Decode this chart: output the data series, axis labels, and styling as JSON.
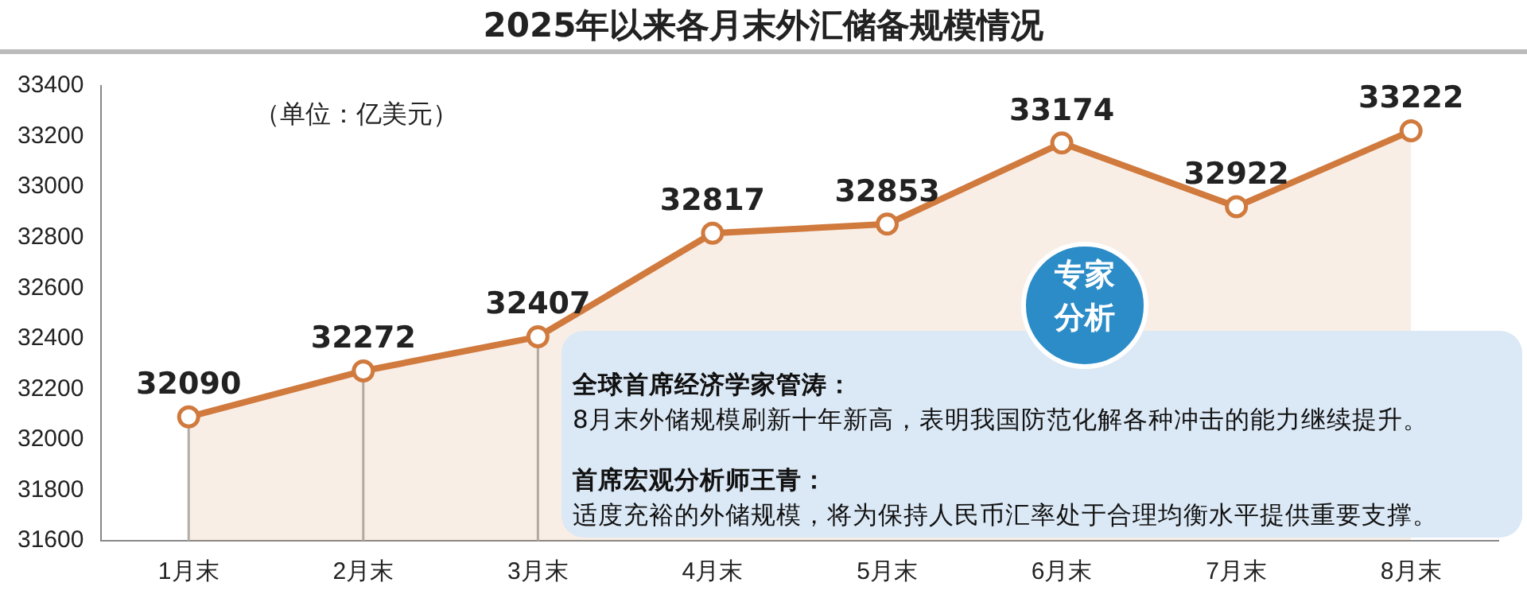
{
  "chart_data": {
    "type": "area",
    "title": "2025年以来各月末外汇储备规模情况",
    "categories": [
      "1月末",
      "2月末",
      "3月末",
      "4月末",
      "5月末",
      "6月末",
      "7月末",
      "8月末"
    ],
    "values": [
      32090,
      32272,
      32407,
      32817,
      32853,
      33174,
      32922,
      33222
    ],
    "color": "#d07a3e",
    "ylim": [
      31600,
      33400
    ],
    "yticks": [
      31600,
      31800,
      32000,
      32200,
      32400,
      32600,
      32800,
      33000,
      33200,
      33400
    ],
    "legend": false,
    "marker": "circle",
    "data_labels": true,
    "annotations": [
      "（单位：亿美元）",
      "专家分析",
      "全球首席经济学家管涛：",
      "8月末外储规模刷新十年新高，表明我国防范化解各种冲击的能力继续提升。",
      "首席宏观分析师王青：",
      "适度充裕的外储规模，将为保持人民币汇率处于合理均衡水平提供重要支撑。"
    ]
  }
}
